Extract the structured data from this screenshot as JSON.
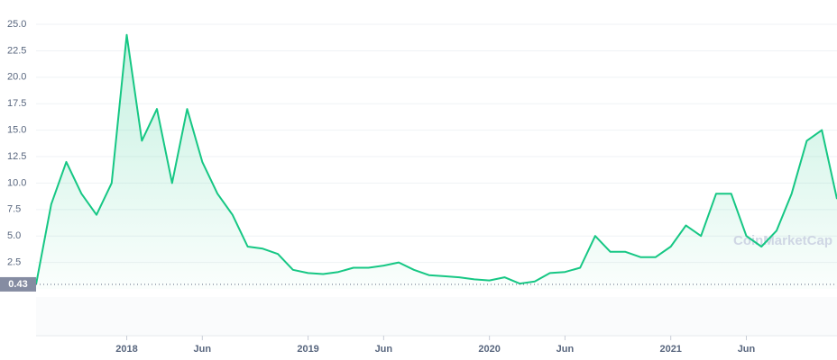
{
  "chart_data": {
    "type": "line",
    "x": [
      "2017-07",
      "2017-08",
      "2017-09",
      "2017-10",
      "2017-11",
      "2017-12",
      "2018-01",
      "2018-02",
      "2018-03",
      "2018-04",
      "2018-05",
      "2018-06",
      "2018-07",
      "2018-08",
      "2018-09",
      "2018-10",
      "2018-11",
      "2018-12",
      "2019-01",
      "2019-02",
      "2019-03",
      "2019-04",
      "2019-05",
      "2019-06",
      "2019-07",
      "2019-08",
      "2019-09",
      "2019-10",
      "2019-11",
      "2019-12",
      "2020-01",
      "2020-02",
      "2020-03",
      "2020-04",
      "2020-05",
      "2020-06",
      "2020-07",
      "2020-08",
      "2020-09",
      "2020-10",
      "2020-11",
      "2020-12",
      "2021-01",
      "2021-02",
      "2021-03",
      "2021-04",
      "2021-05",
      "2021-06",
      "2021-07",
      "2021-08",
      "2021-09",
      "2021-10",
      "2021-11",
      "2021-12"
    ],
    "series": [
      {
        "color": "#16c784",
        "values": [
          0.43,
          8,
          12,
          9,
          7,
          10,
          24,
          14,
          17,
          10,
          17,
          12,
          9,
          7,
          4,
          3.8,
          3.3,
          1.8,
          1.5,
          1.4,
          1.6,
          2,
          2,
          2.2,
          2.5,
          1.8,
          1.3,
          1.2,
          1.1,
          0.9,
          0.8,
          1.1,
          0.5,
          0.7,
          1.5,
          1.6,
          2,
          5,
          3.5,
          3.5,
          3,
          3,
          4,
          6,
          5,
          9,
          9,
          5,
          4,
          5.5,
          9,
          14,
          15,
          8.5
        ]
      }
    ],
    "xlim": [
      "2017-07",
      "2021-12"
    ],
    "xticks": [
      {
        "value": "2018-01",
        "label": "2018"
      },
      {
        "value": "2018-06",
        "label": "Jun"
      },
      {
        "value": "2019-01",
        "label": "2019"
      },
      {
        "value": "2019-06",
        "label": "Jun"
      },
      {
        "value": "2020-01",
        "label": "2020"
      },
      {
        "value": "2020-06",
        "label": "Jun"
      },
      {
        "value": "2021-01",
        "label": "2021"
      },
      {
        "value": "2021-06",
        "label": "Jun"
      }
    ],
    "ylim": [
      0,
      27.3
    ],
    "yticks": [
      2.5,
      {
        "value": 5,
        "label": "5.0"
      },
      7.5,
      {
        "value": 10,
        "label": "10.0"
      },
      12.5,
      {
        "value": 15,
        "label": "15.0"
      },
      17.5,
      {
        "value": 20,
        "label": "20.0"
      },
      22.5,
      {
        "value": 25,
        "label": "25.0"
      }
    ],
    "grid": true,
    "reference_value": 0.43,
    "watermark": "CoinMarketCap"
  }
}
